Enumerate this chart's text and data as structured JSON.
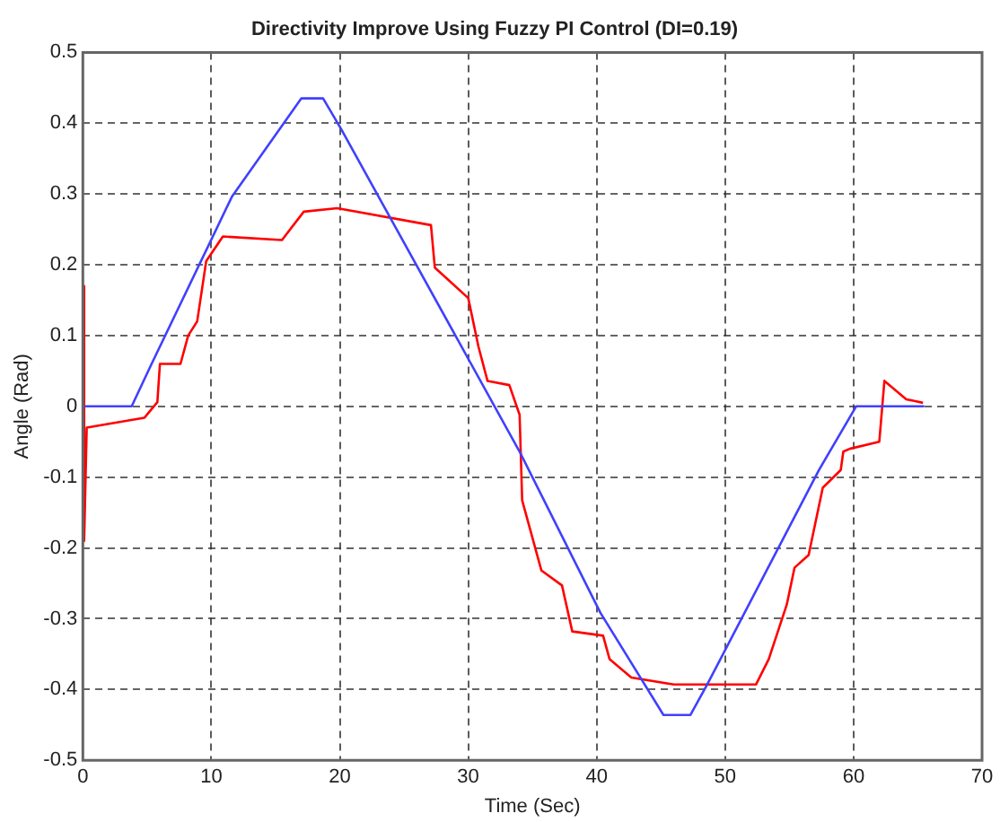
{
  "chart_data": {
    "type": "line",
    "title": "Directivity Improve Using Fuzzy PI Control (DI=0.19)",
    "xlabel": "Time (Sec)",
    "ylabel": "Angle (Rad)",
    "xlim": [
      0,
      70
    ],
    "xticks": [
      0,
      10,
      20,
      30,
      40,
      50,
      60,
      70
    ],
    "ylim": [
      -0.5,
      0.5
    ],
    "yticks": [
      -0.5,
      -0.4,
      -0.3,
      -0.2,
      -0.1,
      0,
      0.1,
      0.2,
      0.3,
      0.4,
      0.5
    ],
    "grid": true,
    "legend": false,
    "marker": "none",
    "line_style": "solid",
    "series": [
      {
        "color": "#4040ff",
        "x": [
          0,
          3.8,
          5.3,
          11.6,
          17,
          18.7,
          20.1,
          34,
          40.3,
          45.2,
          47.3,
          48.6,
          57.3,
          60.2,
          65.5
        ],
        "values": [
          0,
          0,
          0.058,
          0.296,
          0.435,
          0.435,
          0.392,
          -0.064,
          -0.292,
          -0.436,
          -0.436,
          -0.393,
          -0.09,
          0,
          0
        ]
      },
      {
        "color": "#ff0000",
        "x": [
          0,
          0.1,
          0.3,
          4.8,
          5.8,
          6,
          7.6,
          8.2,
          8.9,
          9.6,
          10.9,
          15.5,
          17.2,
          19.8,
          27.1,
          27.4,
          30,
          30.8,
          31.5,
          33.2,
          34,
          34.2,
          35.7,
          37.3,
          38.1,
          40.5,
          41,
          42.7,
          46,
          52.4,
          53.4,
          54.8,
          55.4,
          56.5,
          57.6,
          59,
          59.2,
          59.7,
          62,
          62.4,
          64.1,
          65.4
        ],
        "values": [
          0.17,
          -0.19,
          -0.03,
          -0.016,
          0.006,
          0.06,
          0.06,
          0.1,
          0.12,
          0.205,
          0.24,
          0.235,
          0.275,
          0.28,
          0.256,
          0.196,
          0.153,
          0.084,
          0.036,
          0.03,
          -0.012,
          -0.133,
          -0.232,
          -0.253,
          -0.318,
          -0.324,
          -0.357,
          -0.383,
          -0.393,
          -0.393,
          -0.357,
          -0.28,
          -0.228,
          -0.21,
          -0.115,
          -0.09,
          -0.064,
          -0.06,
          -0.05,
          0.036,
          0.01,
          0.005
        ]
      }
    ]
  }
}
